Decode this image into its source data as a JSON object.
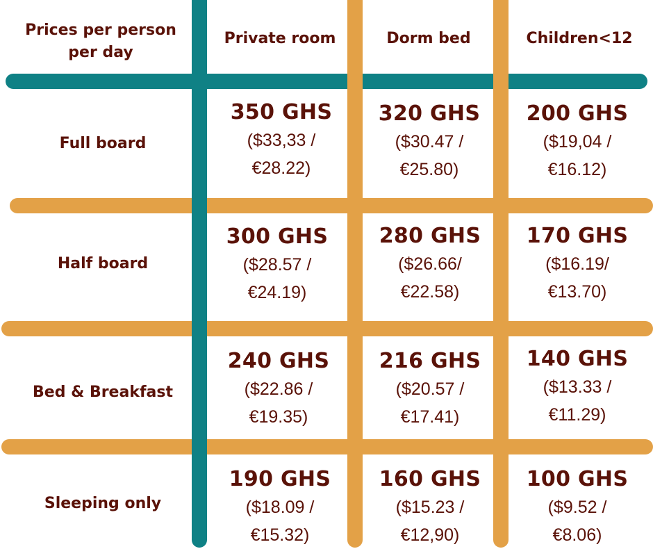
{
  "header": {
    "corner_line1": "Prices per person",
    "corner_line2": "per day",
    "columns": [
      "Private room",
      "Dorm bed",
      "Children<12"
    ]
  },
  "rows": [
    {
      "label": "Full board",
      "cells": [
        {
          "ghs": "350 GHS",
          "usd": "($33,33 /",
          "eur": "€28.22)"
        },
        {
          "ghs": "320 GHS",
          "usd": "($30.47 /",
          "eur": "€25.80)"
        },
        {
          "ghs": "200 GHS",
          "usd": "($19,04 /",
          "eur": "€16.12)"
        }
      ]
    },
    {
      "label": "Half board",
      "cells": [
        {
          "ghs": "300 GHS",
          "usd": "($28.57 /",
          "eur": "€24.19)"
        },
        {
          "ghs": "280 GHS",
          "usd": "($26.66/",
          "eur": "€22.58)"
        },
        {
          "ghs": "170 GHS",
          "usd": "($16.19/",
          "eur": "€13.70)"
        }
      ]
    },
    {
      "label": "Bed & Breakfast",
      "cells": [
        {
          "ghs": "240 GHS",
          "usd": "($22.86 /",
          "eur": "€19.35)"
        },
        {
          "ghs": "216 GHS",
          "usd": "($20.57 /",
          "eur": "€17.41)"
        },
        {
          "ghs": "140 GHS",
          "usd": "($13.33 /",
          "eur": "€11.29)"
        }
      ]
    },
    {
      "label": "Sleeping only",
      "cells": [
        {
          "ghs": "190 GHS",
          "usd": "($18.09 /",
          "eur": "€15.32)"
        },
        {
          "ghs": "160 GHS",
          "usd": "($15.23 /",
          "eur": "€12,90)"
        },
        {
          "ghs": "100 GHS",
          "usd": "($9.52 /",
          "eur": "€8.06)"
        }
      ]
    }
  ],
  "colors": {
    "text": "#5a1208",
    "teal_line": "#0f8185",
    "orange_line": "#e3a147"
  }
}
